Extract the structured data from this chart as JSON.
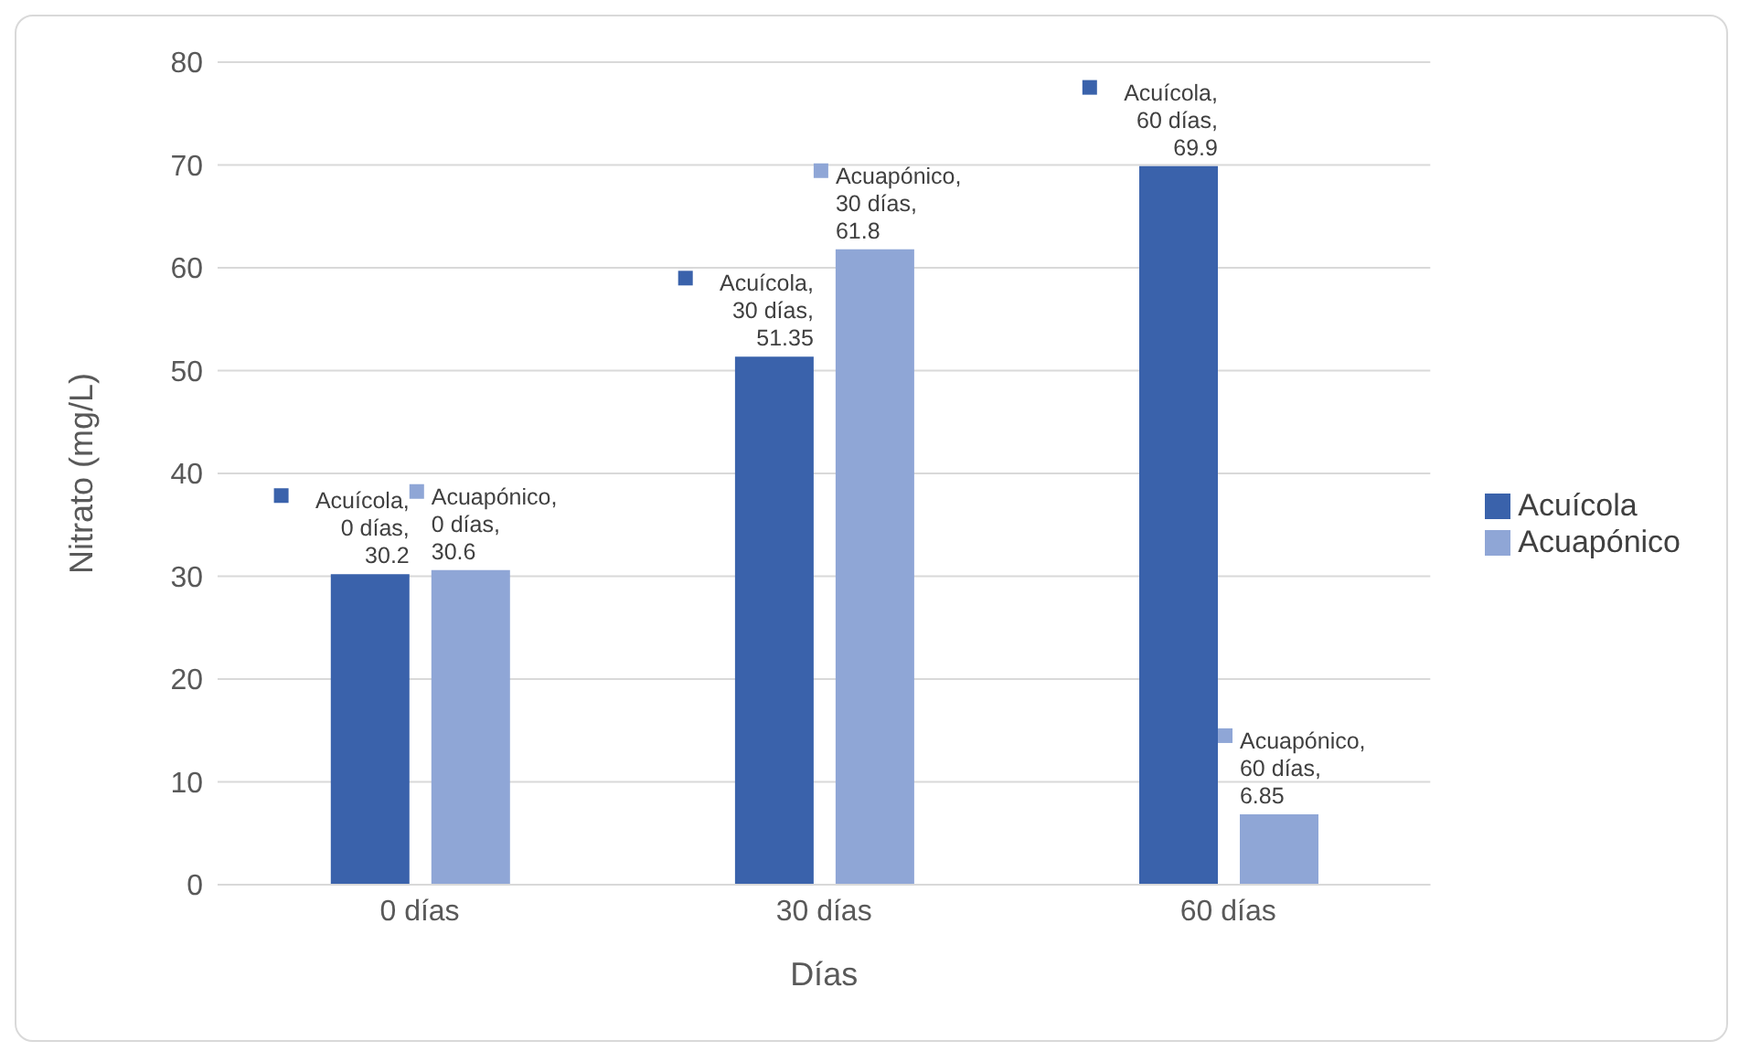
{
  "chart_data": {
    "type": "bar",
    "xlabel": "Días",
    "ylabel": "Nitrato (mg/L)",
    "categories": [
      "0 días",
      "30 días",
      "60 días"
    ],
    "series": [
      {
        "name": "Acuícola",
        "color": "#3a62ab",
        "values": [
          30.2,
          51.35,
          69.9
        ],
        "value_labels": [
          "Acuícola, 0 días, 30.2",
          "Acuícola, 30 días, 51.35",
          "Acuícola, 60 días, 69.9"
        ]
      },
      {
        "name": "Acuapónico",
        "color": "#8fa6d6",
        "values": [
          30.6,
          61.8,
          6.85
        ],
        "value_labels": [
          "Acuapónico, 0 días, 30.6",
          "Acuapónico, 30 días, 61.8",
          "Acuapónico, 60 días, 6.85"
        ]
      }
    ],
    "ylim": [
      0,
      80
    ],
    "yticks": [
      0,
      10,
      20,
      30,
      40,
      50,
      60,
      70,
      80
    ],
    "grid": "y",
    "legend": "right"
  }
}
